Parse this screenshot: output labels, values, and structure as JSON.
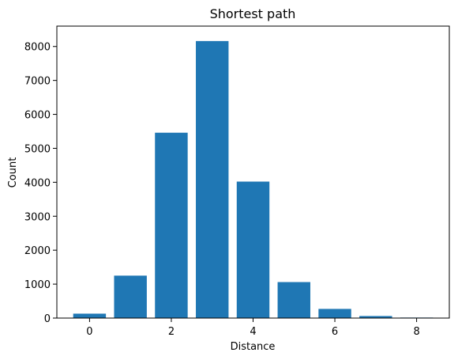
{
  "chart_data": {
    "type": "bar",
    "title": "Shortest path",
    "xlabel": "Distance",
    "ylabel": "Count",
    "x": [
      0,
      1,
      2,
      3,
      4,
      5,
      6,
      7,
      8
    ],
    "values": [
      130,
      1250,
      5460,
      8160,
      4020,
      1060,
      270,
      60,
      15
    ],
    "xlim": [
      -0.8,
      8.8
    ],
    "ylim": [
      0,
      8600
    ],
    "xticks": [
      0,
      2,
      4,
      6,
      8
    ],
    "yticks": [
      0,
      1000,
      2000,
      3000,
      4000,
      5000,
      6000,
      7000,
      8000
    ],
    "grid": false,
    "bar_color": "#1f77b4"
  }
}
